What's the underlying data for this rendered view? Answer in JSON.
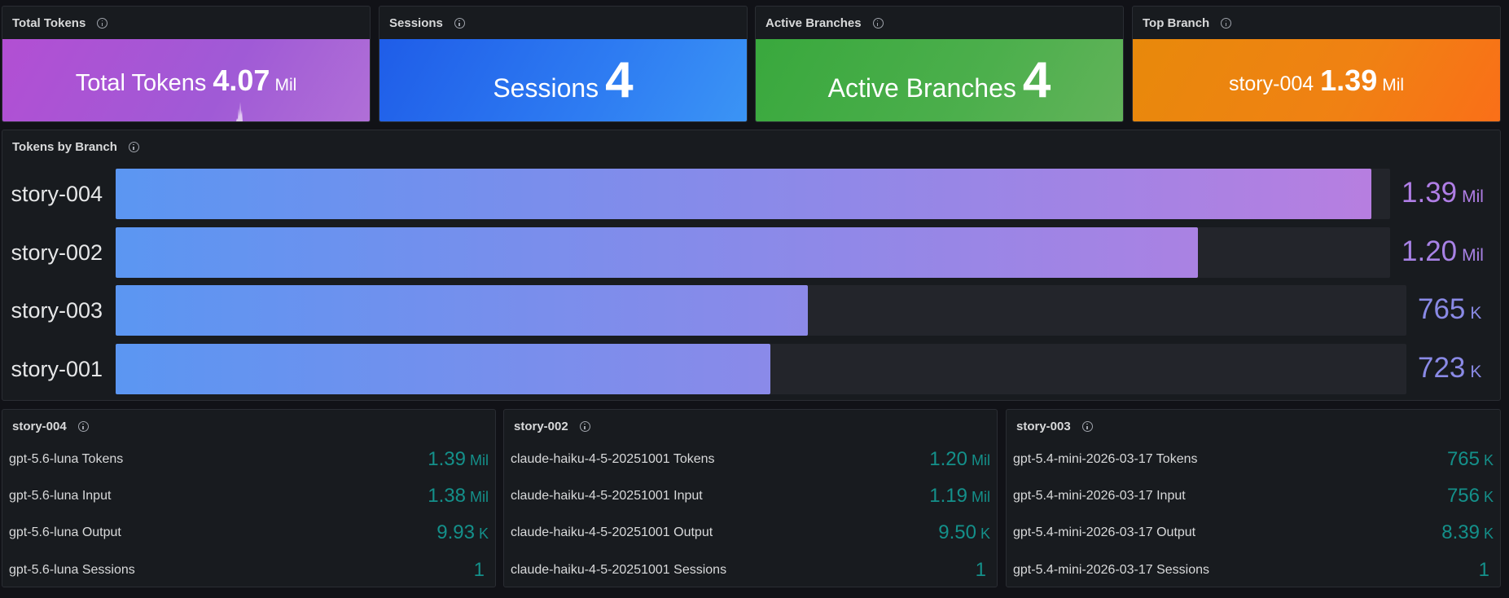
{
  "stats": [
    {
      "title": "Total Tokens",
      "label": "Total Tokens",
      "value": "4.07",
      "unit": "Mil",
      "icon": "info-icon"
    },
    {
      "title": "Sessions",
      "label": "Sessions",
      "value": "4",
      "unit": "",
      "icon": "info-icon"
    },
    {
      "title": "Active Branches",
      "label": "Active Branches",
      "value": "4",
      "unit": "",
      "icon": "info-icon"
    },
    {
      "title": "Top Branch",
      "label": "story-004",
      "value": "1.39",
      "unit": "Mil",
      "icon": "info-icon"
    }
  ],
  "branches": {
    "title": "Tokens by Branch",
    "rows": [
      {
        "label": "story-004",
        "value": "1.39",
        "unit": "Mil",
        "fraction": 0.985
      },
      {
        "label": "story-002",
        "value": "1.20",
        "unit": "Mil",
        "fraction": 0.849
      },
      {
        "label": "story-003",
        "value": "765",
        "unit": "K",
        "fraction": 0.536
      },
      {
        "label": "story-001",
        "value": "723",
        "unit": "K",
        "fraction": 0.507
      }
    ]
  },
  "details": [
    {
      "title": "story-004",
      "rows": [
        {
          "label": "gpt-5.6-luna Tokens",
          "value": "1.39",
          "unit": "Mil"
        },
        {
          "label": "gpt-5.6-luna Input",
          "value": "1.38",
          "unit": "Mil"
        },
        {
          "label": "gpt-5.6-luna Output",
          "value": "9.93",
          "unit": "K"
        },
        {
          "label": "gpt-5.6-luna Sessions",
          "value": "1",
          "unit": ""
        }
      ]
    },
    {
      "title": "story-002",
      "rows": [
        {
          "label": "claude-haiku-4-5-20251001 Tokens",
          "value": "1.20",
          "unit": "Mil"
        },
        {
          "label": "claude-haiku-4-5-20251001 Input",
          "value": "1.19",
          "unit": "Mil"
        },
        {
          "label": "claude-haiku-4-5-20251001 Output",
          "value": "9.50",
          "unit": "K"
        },
        {
          "label": "claude-haiku-4-5-20251001 Sessions",
          "value": "1",
          "unit": ""
        }
      ]
    },
    {
      "title": "story-003",
      "rows": [
        {
          "label": "gpt-5.4-mini-2026-03-17 Tokens",
          "value": "765",
          "unit": "K"
        },
        {
          "label": "gpt-5.4-mini-2026-03-17 Input",
          "value": "756",
          "unit": "K"
        },
        {
          "label": "gpt-5.4-mini-2026-03-17 Output",
          "value": "8.39",
          "unit": "K"
        },
        {
          "label": "gpt-5.4-mini-2026-03-17 Sessions",
          "value": "1",
          "unit": ""
        }
      ]
    }
  ],
  "colors": {
    "bar_start": "#5b96f2",
    "bar_end": "#b87ee0",
    "value_teal": "#14908a"
  }
}
